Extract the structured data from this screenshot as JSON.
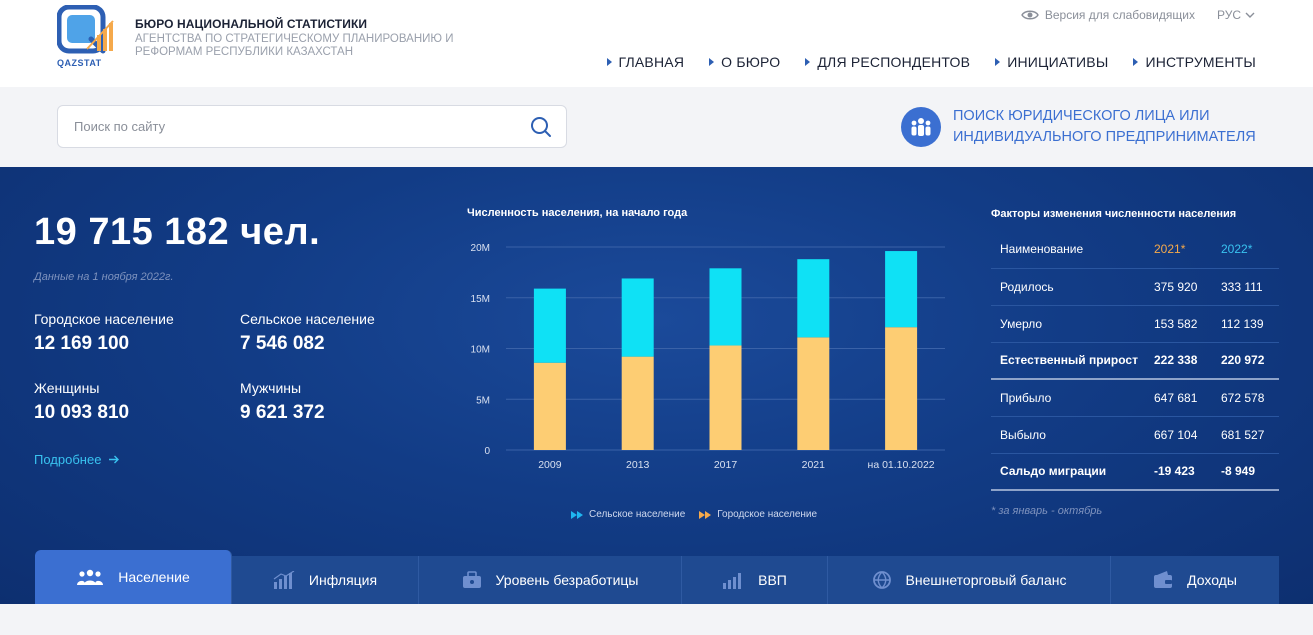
{
  "header": {
    "logo_text": "QAZSTAT",
    "org_title": "БЮРО НАЦИОНАЛЬНОЙ СТАТИСТИКИ",
    "org_sub_1": "АГЕНТСТВА ПО СТРАТЕГИЧЕСКОМУ ПЛАНИРОВАНИЮ И",
    "org_sub_2": "РЕФОРМАМ РЕСПУБЛИКИ КАЗАХСТАН",
    "vision_label": "Версия для слабовидящих",
    "lang_label": "РУС",
    "nav": [
      "ГЛАВНАЯ",
      "О БЮРО",
      "ДЛЯ РЕСПОНДЕНТОВ",
      "ИНИЦИАТИВЫ",
      "ИНСТРУМЕНТЫ"
    ]
  },
  "search": {
    "placeholder": "Поиск по сайту",
    "value": ""
  },
  "legal_search": {
    "line1": "ПОИСК ЮРИДИЧЕСКОГО ЛИЦА ИЛИ",
    "line2": "ИНДИВИДУАЛЬНОГО ПРЕДПРИНИМАТЕЛЯ"
  },
  "population": {
    "total": "19 715 182 чел.",
    "date": "Данные на 1 ноября 2022г.",
    "urban_label": "Городское население",
    "urban_value": "12 169 100",
    "rural_label": "Сельское население",
    "rural_value": "7 546 082",
    "women_label": "Женщины",
    "women_value": "10 093 810",
    "men_label": "Мужчины",
    "men_value": "9 621 372",
    "more_label": "Подробнее"
  },
  "chart_data": {
    "type": "bar",
    "stacked": true,
    "title": "Численность населения, на начало года",
    "categories": [
      "2009",
      "2013",
      "2017",
      "2021",
      "на 01.10.2022"
    ],
    "series": [
      {
        "name": "Городское население",
        "values": [
          8.6,
          9.2,
          10.3,
          11.1,
          12.1
        ],
        "color": "#fdcd73"
      },
      {
        "name": "Сельское население",
        "values": [
          7.3,
          7.7,
          7.6,
          7.7,
          7.5
        ],
        "color": "#0fe1f5"
      }
    ],
    "yticks": [
      "0",
      "5M",
      "10M",
      "15M",
      "20M"
    ],
    "ylim": [
      0,
      20
    ],
    "legend": [
      "Сельское население",
      "Городское население"
    ],
    "legend_colors": [
      "#1fb6f0",
      "#f5a94b"
    ]
  },
  "factors": {
    "title": "Факторы изменения численности населения",
    "head": [
      "Наименование",
      "2021*",
      "2022*"
    ],
    "rows": [
      [
        "Родилось",
        "375 920",
        "333 111"
      ],
      [
        "Умерло",
        "153 582",
        "112 139"
      ],
      [
        "Естественный прирост",
        "222 338",
        "220 972"
      ],
      [
        "Прибыло",
        "647 681",
        "672 578"
      ],
      [
        "Выбыло",
        "667 104",
        "681 527"
      ],
      [
        "Сальдо миграции",
        "-19 423",
        "-8 949"
      ]
    ],
    "footnote": "* за январь - октябрь"
  },
  "tabs": [
    {
      "label": "Население"
    },
    {
      "label": "Инфляция"
    },
    {
      "label": "Уровень безработицы"
    },
    {
      "label": "ВВП"
    },
    {
      "label": "Внешнеторговый баланс"
    },
    {
      "label": "Доходы"
    }
  ],
  "colors": {
    "accent": "#3b6fd1",
    "brand_blue": "#2d5fb3",
    "cyan": "#39c3f0",
    "orange": "#f5a94b",
    "main_bg": "#123c86"
  }
}
